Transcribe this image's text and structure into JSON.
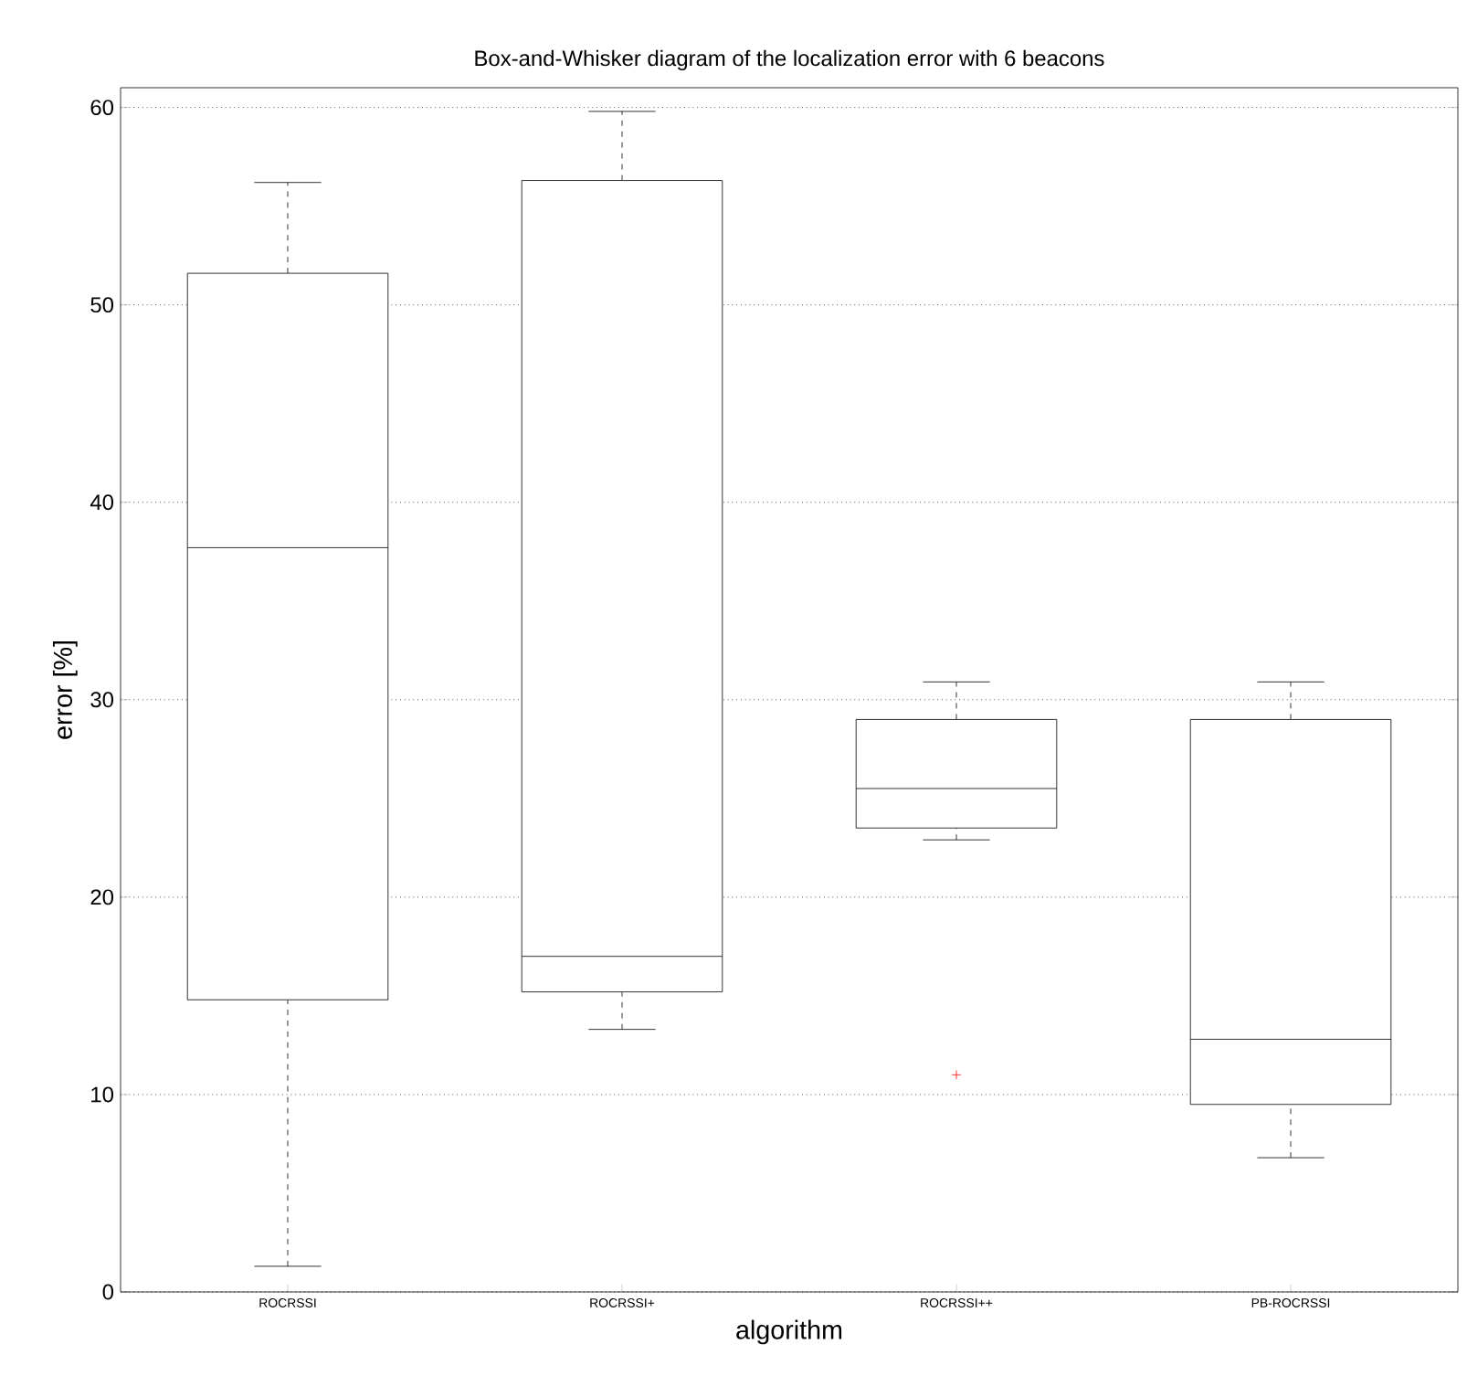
{
  "chart_data": {
    "type": "box",
    "title": "Box-and-Whisker diagram of the localization error with 6 beacons",
    "xlabel": "algorithm",
    "ylabel": "error [%]",
    "categories": [
      "ROCRSSI",
      "ROCRSSI+",
      "ROCRSSI++",
      "PB-ROCRSSI"
    ],
    "boxes": [
      {
        "low": 1.3,
        "q1": 14.8,
        "median": 37.7,
        "q3": 51.6,
        "high": 56.2
      },
      {
        "low": 13.3,
        "q1": 15.2,
        "median": 17.0,
        "q3": 56.3,
        "high": 59.8
      },
      {
        "low": 22.9,
        "q1": 23.5,
        "median": 25.5,
        "q3": 29.0,
        "high": 30.9,
        "outliers": [
          11.0
        ]
      },
      {
        "low": 6.8,
        "q1": 9.5,
        "median": 12.8,
        "q3": 29.0,
        "high": 30.9
      }
    ],
    "ylim": [
      0,
      61
    ],
    "yticks": [
      0,
      10,
      20,
      30,
      40,
      50,
      60
    ],
    "grid": "y"
  }
}
